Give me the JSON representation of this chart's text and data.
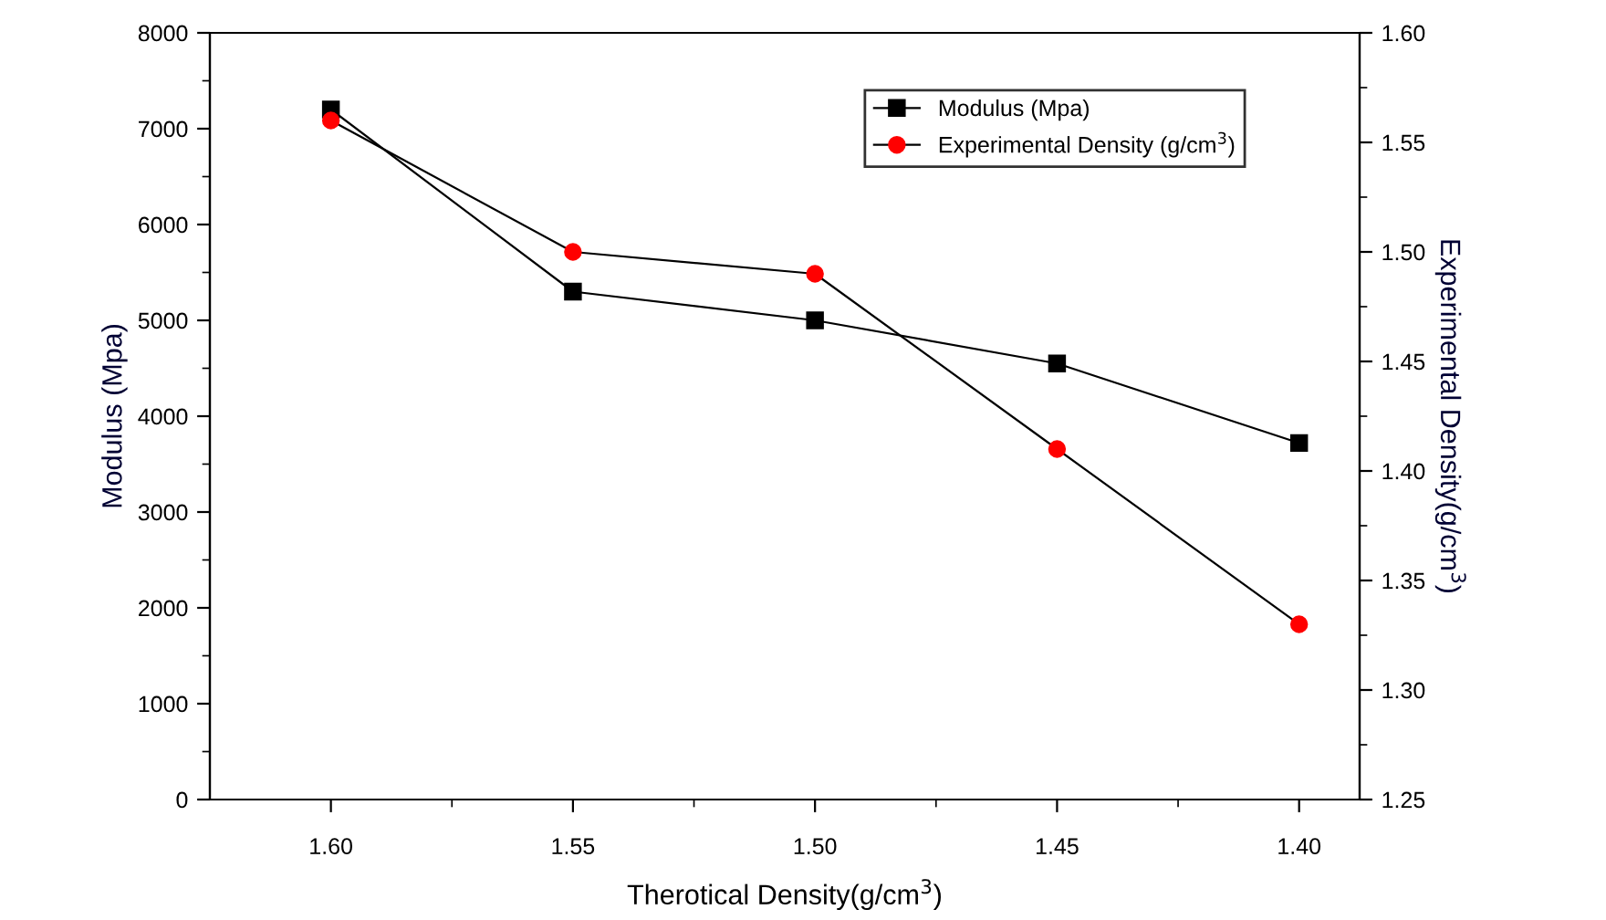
{
  "chart_data": {
    "type": "line",
    "xlabel": "Therotical Density(g/cm$^{3}$)",
    "ylabel": "Modulus (Mpa)",
    "y2label": "Experimental Density(g/cm$^{3}$)",
    "x": [
      1.6,
      1.55,
      1.5,
      1.45,
      1.4
    ],
    "series": [
      {
        "name": "Modulus (Mpa)",
        "color": "#000000",
        "marker": "square",
        "values": [
          7200,
          5300,
          5000,
          4550,
          3720
        ]
      },
      {
        "name": "Experimental Density (g/cm$^{3}$)",
        "color": "#ff0000",
        "marker": "circle",
        "axis": "y2",
        "values": [
          1.56,
          1.5,
          1.49,
          1.41,
          1.33
        ]
      }
    ],
    "xlim": [
      1.625,
      1.3875
    ],
    "xticks": [
      {
        "value": 1.6,
        "label": "1.60"
      },
      {
        "value": 1.55,
        "label": "1.55"
      },
      {
        "value": 1.5,
        "label": "1.50"
      },
      {
        "value": 1.45,
        "label": "1.45"
      },
      {
        "value": 1.4,
        "label": "1.40"
      }
    ],
    "ylim": [
      0,
      8000
    ],
    "yticks": [
      0,
      1000,
      2000,
      3000,
      4000,
      5000,
      6000,
      7000,
      8000
    ],
    "y2lim": [
      1.25,
      1.6
    ],
    "y2ticks": [
      {
        "value": 1.25,
        "label": "1.25"
      },
      {
        "value": 1.3,
        "label": "1.30"
      },
      {
        "value": 1.35,
        "label": "1.35"
      },
      {
        "value": 1.4,
        "label": "1.40"
      },
      {
        "value": 1.45,
        "label": "1.45"
      },
      {
        "value": 1.5,
        "label": "1.50"
      },
      {
        "value": 1.55,
        "label": "1.55"
      },
      {
        "value": 1.6,
        "label": "1.60"
      }
    ],
    "grid": false,
    "legend": "top right",
    "line_style": "solid"
  }
}
